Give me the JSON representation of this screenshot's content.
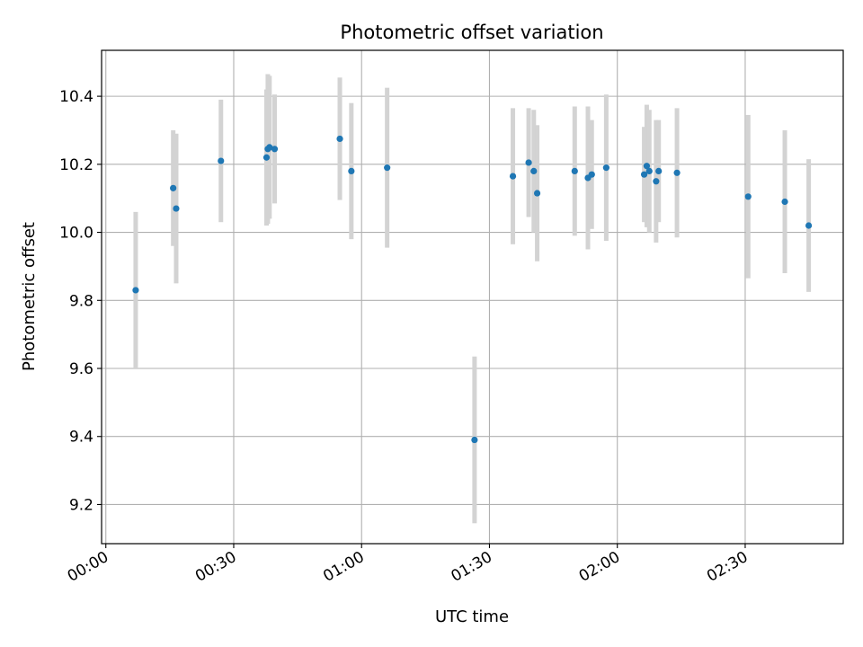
{
  "chart_data": {
    "type": "scatter",
    "title": "Photometric offset variation",
    "xlabel": "UTC time",
    "ylabel": "Photometric offset",
    "grid": true,
    "x_unit": "minutes",
    "xlim": [
      -1,
      173
    ],
    "ylim": [
      9.085,
      10.535
    ],
    "x_ticks": [
      {
        "value": 0,
        "label": "00:00"
      },
      {
        "value": 30,
        "label": "00:30"
      },
      {
        "value": 60,
        "label": "01:00"
      },
      {
        "value": 90,
        "label": "01:30"
      },
      {
        "value": 120,
        "label": "02:00"
      },
      {
        "value": 150,
        "label": "02:30"
      }
    ],
    "y_ticks": [
      {
        "value": 9.2,
        "label": "9.2"
      },
      {
        "value": 9.4,
        "label": "9.4"
      },
      {
        "value": 9.6,
        "label": "9.6"
      },
      {
        "value": 9.8,
        "label": "9.8"
      },
      {
        "value": 10.0,
        "label": "10.0"
      },
      {
        "value": 10.2,
        "label": "10.2"
      },
      {
        "value": 10.4,
        "label": "10.4"
      }
    ],
    "colors": {
      "point": "#1f77b4",
      "errorbar": "#d3d3d3",
      "grid": "#b0b0b0"
    },
    "points": [
      {
        "x": 7.0,
        "y": 9.83,
        "err": 0.23
      },
      {
        "x": 15.8,
        "y": 10.13,
        "err": 0.17
      },
      {
        "x": 16.5,
        "y": 10.07,
        "err": 0.22
      },
      {
        "x": 27.0,
        "y": 10.21,
        "err": 0.18
      },
      {
        "x": 37.7,
        "y": 10.22,
        "err": 0.2
      },
      {
        "x": 38.0,
        "y": 10.245,
        "err": 0.22
      },
      {
        "x": 38.4,
        "y": 10.25,
        "err": 0.21
      },
      {
        "x": 39.6,
        "y": 10.245,
        "err": 0.16
      },
      {
        "x": 54.9,
        "y": 10.275,
        "err": 0.18
      },
      {
        "x": 57.6,
        "y": 10.18,
        "err": 0.2
      },
      {
        "x": 66.0,
        "y": 10.19,
        "err": 0.235
      },
      {
        "x": 86.5,
        "y": 9.39,
        "err": 0.245
      },
      {
        "x": 95.5,
        "y": 10.165,
        "err": 0.2
      },
      {
        "x": 99.2,
        "y": 10.205,
        "err": 0.16
      },
      {
        "x": 100.4,
        "y": 10.18,
        "err": 0.18
      },
      {
        "x": 101.2,
        "y": 10.115,
        "err": 0.2
      },
      {
        "x": 110.0,
        "y": 10.18,
        "err": 0.19
      },
      {
        "x": 113.1,
        "y": 10.16,
        "err": 0.21
      },
      {
        "x": 114.0,
        "y": 10.17,
        "err": 0.16
      },
      {
        "x": 117.4,
        "y": 10.19,
        "err": 0.215
      },
      {
        "x": 126.3,
        "y": 10.17,
        "err": 0.14
      },
      {
        "x": 126.9,
        "y": 10.195,
        "err": 0.18
      },
      {
        "x": 127.5,
        "y": 10.18,
        "err": 0.18
      },
      {
        "x": 129.1,
        "y": 10.15,
        "err": 0.18
      },
      {
        "x": 129.7,
        "y": 10.18,
        "err": 0.15
      },
      {
        "x": 134.0,
        "y": 10.175,
        "err": 0.19
      },
      {
        "x": 150.7,
        "y": 10.105,
        "err": 0.24
      },
      {
        "x": 159.3,
        "y": 10.09,
        "err": 0.21
      },
      {
        "x": 164.9,
        "y": 10.02,
        "err": 0.195
      }
    ]
  }
}
